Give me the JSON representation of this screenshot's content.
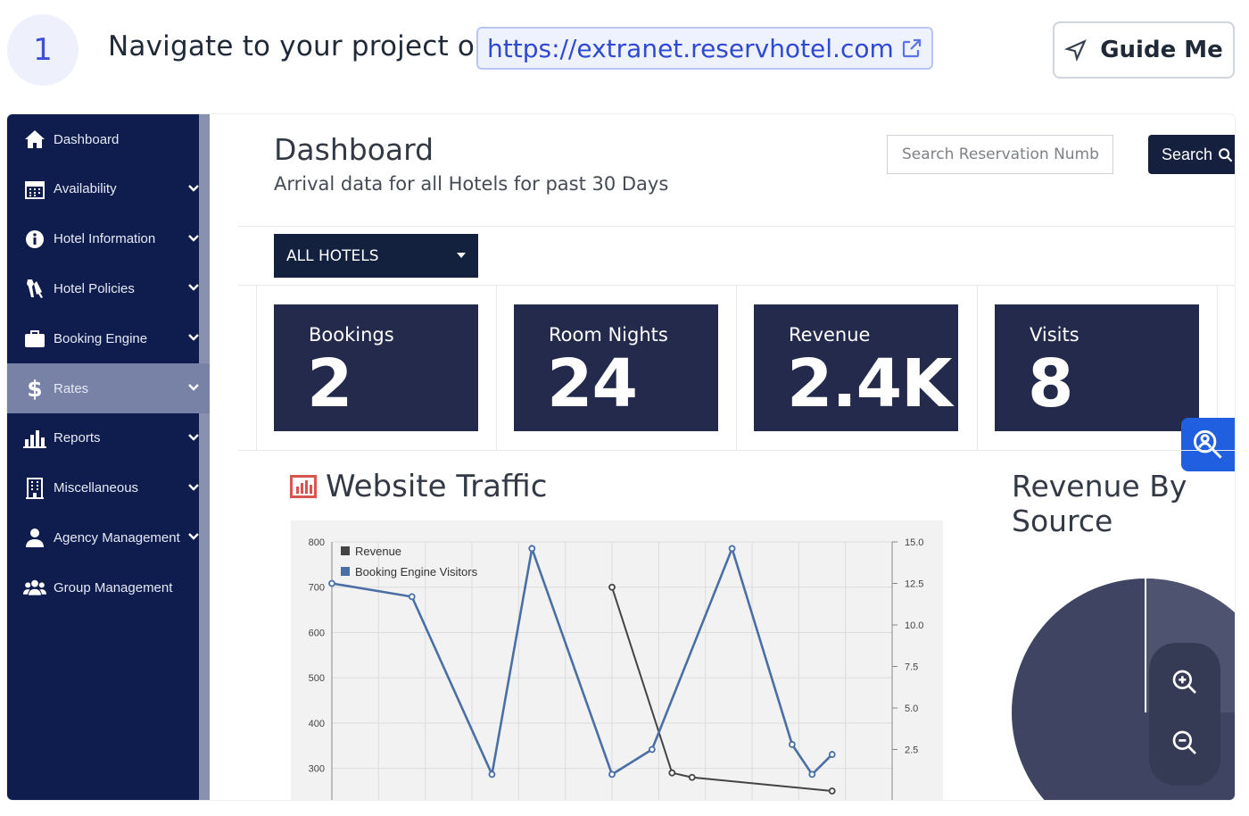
{
  "step": {
    "number": "1",
    "text": "Navigate to your project on",
    "link": "https://extranet.reservhotel.com",
    "guide_label": "Guide Me"
  },
  "sidebar": {
    "items": [
      {
        "label": "Dashboard",
        "icon": "home-icon"
      },
      {
        "label": "Availability",
        "icon": "calendar-icon"
      },
      {
        "label": "Hotel Information",
        "icon": "info-icon"
      },
      {
        "label": "Hotel Policies",
        "icon": "tools-icon"
      },
      {
        "label": "Booking Engine",
        "icon": "briefcase-icon"
      },
      {
        "label": "Rates",
        "icon": "dollar-icon"
      },
      {
        "label": "Reports",
        "icon": "bar-chart-icon"
      },
      {
        "label": "Miscellaneous",
        "icon": "building-icon"
      },
      {
        "label": "Agency Management",
        "icon": "user-icon"
      },
      {
        "label": "Group Management",
        "icon": "users-icon"
      }
    ],
    "active": "Rates"
  },
  "header": {
    "title": "Dashboard",
    "subtitle": "Arrival data for all Hotels for past 30 Days",
    "search_placeholder": "Search Reservation Number",
    "search_label": "Search"
  },
  "filter": {
    "selected": "ALL HOTELS"
  },
  "stats": [
    {
      "label": "Bookings",
      "value": "2"
    },
    {
      "label": "Room Nights",
      "value": "24"
    },
    {
      "label": "Revenue",
      "value": "2.4K"
    },
    {
      "label": "Visits",
      "value": "8"
    }
  ],
  "traffic": {
    "title": "Website Traffic"
  },
  "revenue_source": {
    "title": "Revenue By Source"
  },
  "colors": {
    "sidebar": "#0e1d4d",
    "stat_card": "#232a4b",
    "accent": "#1f5fe0",
    "visitors_series": "#4a6fa5",
    "revenue_series": "#444444"
  },
  "chart_data": {
    "type": "line",
    "legend": "top-left",
    "grid": true,
    "y_left": {
      "ticks": [
        "800",
        "700",
        "600",
        "500",
        "400",
        "300"
      ],
      "range": [
        250,
        800
      ]
    },
    "y_right": {
      "ticks": [
        "15.0",
        "12.5",
        "10.0",
        "7.5",
        "5.0",
        "2.5"
      ],
      "range": [
        0,
        15
      ]
    },
    "series": [
      {
        "name": "Revenue",
        "axis": "left",
        "values": [
          null,
          null,
          null,
          null,
          null,
          null,
          null,
          null,
          null,
          null,
          null,
          null,
          null,
          null,
          700,
          null,
          null,
          290,
          280,
          null,
          null,
          null,
          null,
          null,
          null,
          250,
          null,
          null,
          null
        ]
      },
      {
        "name": "Booking Engine Visitors",
        "axis": "right",
        "values": [
          12.5,
          null,
          null,
          null,
          11.7,
          null,
          null,
          null,
          1.0,
          null,
          14.6,
          null,
          null,
          null,
          1.0,
          null,
          2.5,
          null,
          null,
          null,
          14.6,
          null,
          null,
          2.8,
          1.0,
          2.2,
          null,
          null,
          null
        ]
      }
    ]
  }
}
